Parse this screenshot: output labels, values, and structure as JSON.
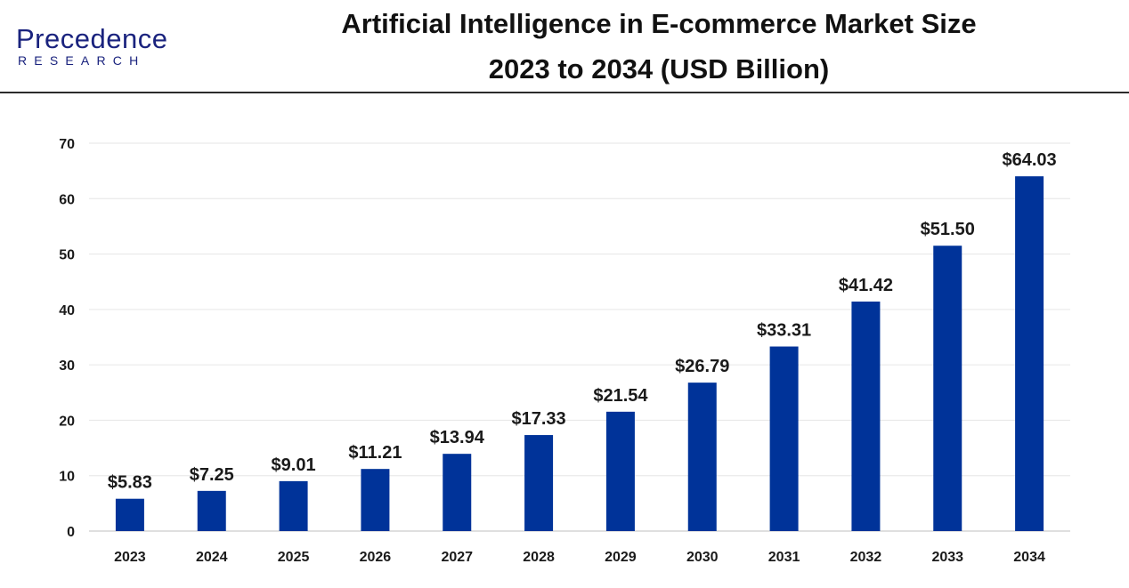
{
  "brand": {
    "name": "Precedence",
    "tagline": "RESEARCH"
  },
  "chart_data": {
    "type": "bar",
    "title": "Artificial Intelligence in E-commerce Market Size",
    "subtitle": "2023 to 2034 (USD Billion)",
    "categories": [
      "2023",
      "2024",
      "2025",
      "2026",
      "2027",
      "2028",
      "2029",
      "2030",
      "2031",
      "2032",
      "2033",
      "2034"
    ],
    "values": [
      5.83,
      7.25,
      9.01,
      11.21,
      13.94,
      17.33,
      21.54,
      26.79,
      33.31,
      41.42,
      51.5,
      64.03
    ],
    "data_labels": [
      "$5.83",
      "$7.25",
      "$9.01",
      "$11.21",
      "$13.94",
      "$17.33",
      "$21.54",
      "$26.79",
      "$33.31",
      "$41.42",
      "$51.50",
      "$64.03"
    ],
    "yticks": [
      0,
      10,
      20,
      30,
      40,
      50,
      60,
      70
    ],
    "ylim": [
      0,
      70
    ],
    "xlabel": "",
    "ylabel": "",
    "grid": true,
    "legend": "none",
    "bar_color": "#003399"
  }
}
